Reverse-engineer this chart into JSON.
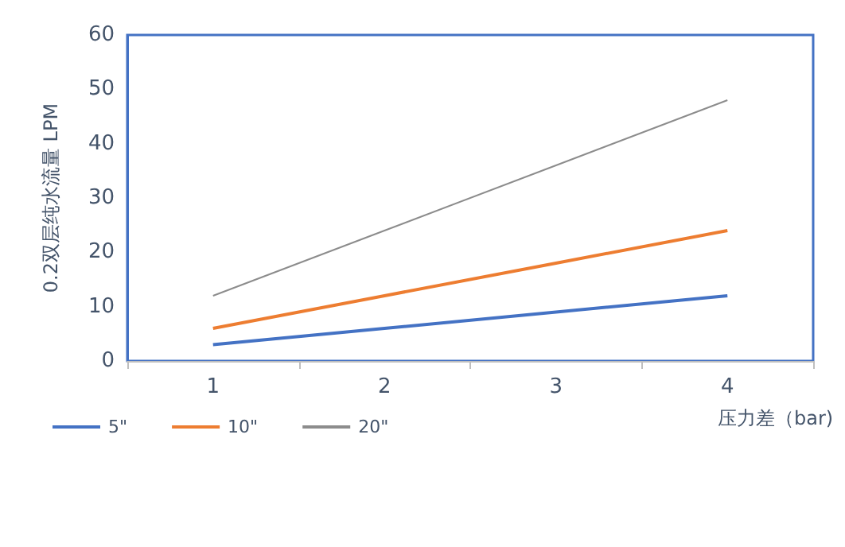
{
  "chart_data": {
    "type": "line",
    "xlabel": "压力差（bar)",
    "ylabel": "0.2双层纯水流量 LPM",
    "categories": [
      "1",
      "2",
      "3",
      "4"
    ],
    "series": [
      {
        "name": "5\"",
        "color": "#4472c4",
        "values": [
          3,
          6,
          9,
          12
        ]
      },
      {
        "name": "10\"",
        "color": "#ed7d31",
        "values": [
          6,
          12,
          18,
          24
        ]
      },
      {
        "name": "20\"",
        "color": "#8c8c8c",
        "values": [
          12,
          24,
          36,
          48
        ]
      }
    ],
    "ylim": [
      0,
      60
    ],
    "yticks": [
      0,
      10,
      20,
      30,
      40,
      50,
      60
    ],
    "grid": false,
    "legend": "bottom left",
    "marker": "none",
    "line_style": "solid"
  }
}
